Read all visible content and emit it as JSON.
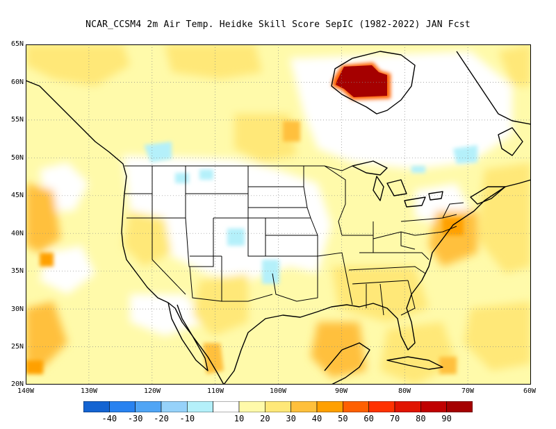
{
  "title": "NCAR_CCSM4  2m Air Temp. Heidke Skill Score SepIC (1982-2022) JAN Fcst",
  "lat_labels": [
    "65N",
    "60N",
    "55N",
    "50N",
    "45N",
    "40N",
    "35N",
    "30N",
    "25N",
    "20N"
  ],
  "lon_labels": [
    "140W",
    "130W",
    "120W",
    "110W",
    "100W",
    "90W",
    "80W",
    "70W",
    "60W"
  ],
  "colorbar": {
    "colors": [
      "#1464d2",
      "#2882f0",
      "#50a5f5",
      "#96d2fa",
      "#b4f0fa",
      "#ffffff",
      "#fffaaa",
      "#ffe878",
      "#ffc03c",
      "#ffa000",
      "#ff6000",
      "#ff3200",
      "#e11400",
      "#c00000",
      "#a50000"
    ],
    "labels": [
      "-40",
      "-30",
      "-20",
      "-10",
      "10",
      "20",
      "30",
      "40",
      "50",
      "60",
      "70",
      "80",
      "90"
    ]
  },
  "map": {
    "lat_range": [
      20,
      65
    ],
    "lon_range": [
      -140,
      -60
    ],
    "fill_colors": {
      "light_yellow": "#fffaaa",
      "yellow": "#ffe878",
      "orange": "#ffc03c",
      "dark_orange": "#ffa000",
      "dark_red": "#a50000",
      "red": "#c00000",
      "light_blue": "#b4f0fa"
    }
  }
}
